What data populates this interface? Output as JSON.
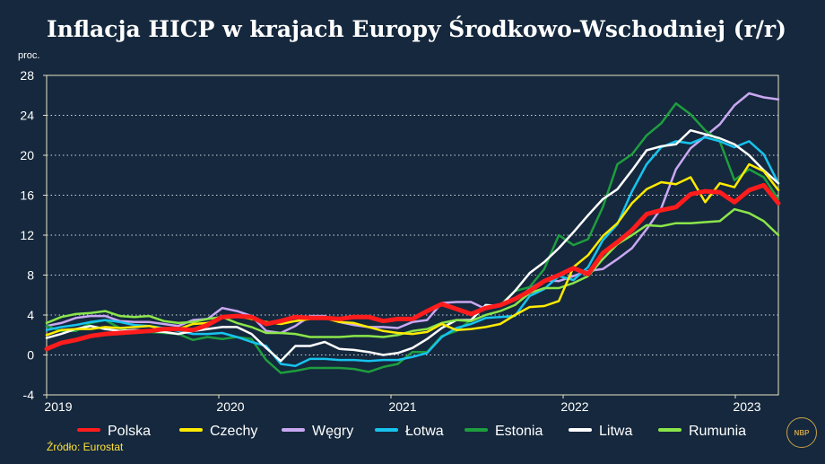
{
  "title": "Inflacja HICP w krajach Europy Środkowo-Wschodniej (r/r)",
  "unit": "proc.",
  "source": "Źródło: Eurostat",
  "logo_text": "NBP",
  "chart_data": {
    "type": "line",
    "ylim": [
      -4,
      28
    ],
    "yticks": [
      -4,
      0,
      4,
      8,
      12,
      16,
      20,
      24,
      28
    ],
    "xlim": [
      2019.0,
      2023.25
    ],
    "xticks": [
      {
        "value": 2019,
        "label": "2019"
      },
      {
        "value": 2020,
        "label": "2020"
      },
      {
        "value": 2021,
        "label": "2021"
      },
      {
        "value": 2022,
        "label": "2022"
      },
      {
        "value": 2023,
        "label": "2023"
      }
    ],
    "grid": "horizontal-dotted",
    "legend": "bottom",
    "series": [
      {
        "name": "Węgry",
        "color": "#c9a8f2",
        "width": 2.5,
        "values": [
          2.9,
          3.2,
          3.7,
          3.9,
          3.9,
          3.4,
          3.3,
          3.3,
          3.1,
          2.9,
          3.5,
          3.6,
          4.7,
          4.4,
          3.9,
          2.4,
          2.2,
          2.9,
          3.9,
          3.9,
          3.3,
          3.0,
          2.8,
          2.8,
          2.7,
          3.3,
          3.5,
          5.2,
          5.3,
          5.3,
          4.6,
          4.9,
          5.5,
          6.6,
          7.5,
          7.4,
          7.9,
          8.4,
          8.6,
          9.6,
          10.7,
          12.6,
          14.7,
          18.6,
          20.7,
          21.9,
          23.1,
          25.0,
          26.2,
          25.8,
          25.6
        ]
      },
      {
        "name": "Estonia",
        "color": "#1e9e3e",
        "width": 2.5,
        "values": [
          2.9,
          2.4,
          2.4,
          3.2,
          3.5,
          2.7,
          2.2,
          2.3,
          2.2,
          2.1,
          1.5,
          1.8,
          1.6,
          1.8,
          1.6,
          -0.5,
          -1.8,
          -1.6,
          -1.3,
          -1.3,
          -1.3,
          -1.4,
          -1.7,
          -1.2,
          -0.9,
          0.3,
          0.3,
          1.9,
          2.4,
          3.5,
          4.9,
          5.0,
          6.4,
          6.8,
          8.6,
          12.0,
          11.0,
          11.6,
          14.8,
          19.1,
          20.1,
          22.0,
          23.2,
          25.2,
          24.1,
          22.5,
          21.4,
          17.5,
          18.6,
          17.8,
          15.6
        ]
      },
      {
        "name": "Łotwa",
        "color": "#17c3ee",
        "width": 2.5,
        "values": [
          2.5,
          2.8,
          3.0,
          3.3,
          3.5,
          3.3,
          3.0,
          2.9,
          2.7,
          2.4,
          2.1,
          2.1,
          2.2,
          1.8,
          1.3,
          0.9,
          -0.9,
          -1.1,
          -0.4,
          -0.4,
          -0.5,
          -0.5,
          -0.6,
          -0.5,
          -0.5,
          -0.2,
          0.2,
          1.8,
          2.7,
          3.1,
          3.7,
          3.8,
          3.9,
          5.9,
          6.6,
          7.9,
          7.5,
          8.8,
          11.5,
          13.1,
          16.4,
          19.1,
          20.8,
          21.4,
          21.2,
          21.8,
          21.4,
          20.8,
          21.4,
          20.1,
          17.2
        ]
      },
      {
        "name": "Litwa",
        "color": "#ffffff",
        "width": 2.5,
        "values": [
          1.7,
          2.1,
          2.6,
          2.9,
          2.6,
          2.4,
          2.5,
          2.4,
          2.3,
          2.1,
          2.4,
          2.6,
          2.8,
          2.8,
          2.1,
          0.7,
          -0.6,
          0.9,
          0.9,
          1.3,
          0.6,
          0.5,
          0.3,
          0.0,
          0.2,
          0.7,
          1.6,
          2.7,
          3.5,
          3.5,
          5.0,
          4.9,
          6.4,
          8.2,
          9.3,
          10.7,
          12.3,
          14.0,
          15.6,
          16.6,
          18.5,
          20.5,
          20.9,
          21.1,
          22.5,
          22.1,
          21.7,
          21.1,
          20.0,
          18.5,
          17.2
        ]
      },
      {
        "name": "Rumunia",
        "color": "#8be54a",
        "width": 2.5,
        "values": [
          3.2,
          3.8,
          4.1,
          4.2,
          4.4,
          3.9,
          3.8,
          3.9,
          3.4,
          3.2,
          3.3,
          3.6,
          3.8,
          3.2,
          2.8,
          2.2,
          2.2,
          2.1,
          1.8,
          1.8,
          1.8,
          1.9,
          1.9,
          1.8,
          2.0,
          2.4,
          2.6,
          3.2,
          3.5,
          3.4,
          4.0,
          4.4,
          5.0,
          6.2,
          6.7,
          6.7,
          7.2,
          7.9,
          9.6,
          11.1,
          12.0,
          13.0,
          12.9,
          13.2,
          13.2,
          13.3,
          13.4,
          14.6,
          14.2,
          13.4,
          12.0
        ]
      },
      {
        "name": "Czechy",
        "color": "#ffea00",
        "width": 2.5,
        "values": [
          2.0,
          2.5,
          2.6,
          2.6,
          2.8,
          2.7,
          2.8,
          2.9,
          2.6,
          2.6,
          3.1,
          3.2,
          3.7,
          3.9,
          3.6,
          3.3,
          3.1,
          3.4,
          3.6,
          3.7,
          3.3,
          3.2,
          2.8,
          2.4,
          2.2,
          2.1,
          2.3,
          3.1,
          2.5,
          2.6,
          2.8,
          3.1,
          4.0,
          4.8,
          4.9,
          5.4,
          8.8,
          10.0,
          11.9,
          13.2,
          15.2,
          16.6,
          17.3,
          17.1,
          17.8,
          15.3,
          17.2,
          16.8,
          19.1,
          18.4,
          16.5
        ]
      },
      {
        "name": "Polska",
        "color": "#ff1c1c",
        "width": 5,
        "values": [
          0.6,
          1.2,
          1.5,
          1.9,
          2.1,
          2.2,
          2.3,
          2.4,
          2.6,
          2.6,
          2.5,
          3.0,
          3.8,
          3.9,
          3.8,
          3.1,
          3.4,
          3.8,
          3.7,
          3.7,
          3.6,
          3.8,
          3.8,
          3.4,
          3.6,
          3.6,
          4.4,
          5.1,
          4.6,
          4.1,
          4.7,
          5.0,
          5.6,
          6.4,
          7.4,
          8.0,
          8.7,
          8.1,
          10.2,
          11.3,
          12.5,
          14.1,
          14.5,
          14.8,
          16.1,
          16.4,
          16.3,
          15.3,
          16.5,
          17.0,
          15.2
        ]
      }
    ],
    "legend_order": [
      "Polska",
      "Czechy",
      "Węgry",
      "Łotwa",
      "Estonia",
      "Litwa",
      "Rumunia"
    ]
  }
}
